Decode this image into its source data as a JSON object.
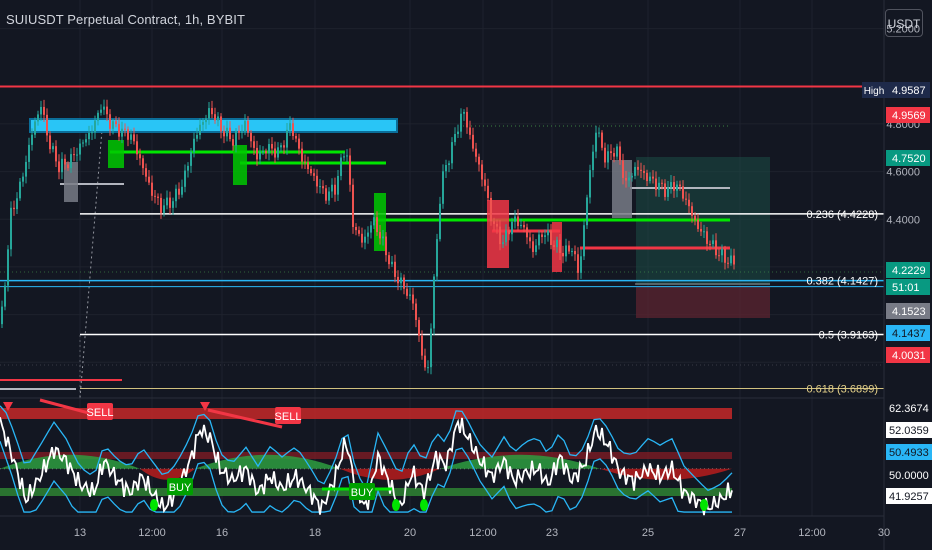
{
  "header": {
    "title": "SUIUSDT Perpetual Contract, 1h, BYBIT",
    "currency_label": "USDT"
  },
  "colors": {
    "bg": "#131722",
    "up": "#26a69a",
    "down": "#ef5350",
    "axis_text": "#b2b5be",
    "green": "#00e600",
    "red": "#f23645",
    "cyan": "#29b6f6"
  },
  "chart_data": [
    {
      "type": "line",
      "title": "SUIUSDT Perpetual Contract, 1h, BYBIT",
      "x_ticks": [
        "13",
        "12:00",
        "16",
        "18",
        "20",
        "12:00",
        "23",
        "25",
        "27",
        "12:00",
        "30"
      ],
      "y_ticks": [
        "5.2000",
        "4.8000",
        "4.6000",
        "4.4000"
      ],
      "ylim": [
        3.65,
        5.32
      ],
      "price_path": [
        [
          0,
          3.96
        ],
        [
          10,
          4.42
        ],
        [
          20,
          4.55
        ],
        [
          32,
          4.78
        ],
        [
          40,
          4.88
        ],
        [
          48,
          4.72
        ],
        [
          58,
          4.62
        ],
        [
          68,
          4.64
        ],
        [
          78,
          4.7
        ],
        [
          92,
          4.78
        ],
        [
          100,
          4.88
        ],
        [
          110,
          4.8
        ],
        [
          120,
          4.77
        ],
        [
          130,
          4.75
        ],
        [
          140,
          4.64
        ],
        [
          150,
          4.52
        ],
        [
          160,
          4.45
        ],
        [
          172,
          4.48
        ],
        [
          182,
          4.55
        ],
        [
          192,
          4.72
        ],
        [
          200,
          4.8
        ],
        [
          210,
          4.86
        ],
        [
          220,
          4.78
        ],
        [
          232,
          4.73
        ],
        [
          244,
          4.8
        ],
        [
          256,
          4.66
        ],
        [
          266,
          4.7
        ],
        [
          278,
          4.68
        ],
        [
          290,
          4.8
        ],
        [
          300,
          4.66
        ],
        [
          312,
          4.58
        ],
        [
          324,
          4.5
        ],
        [
          334,
          4.53
        ],
        [
          345,
          4.72
        ],
        [
          352,
          4.38
        ],
        [
          362,
          4.3
        ],
        [
          372,
          4.4
        ],
        [
          382,
          4.3
        ],
        [
          392,
          4.18
        ],
        [
          402,
          4.12
        ],
        [
          412,
          4.05
        ],
        [
          420,
          3.86
        ],
        [
          426,
          3.72
        ],
        [
          432,
          4.08
        ],
        [
          440,
          4.55
        ],
        [
          452,
          4.72
        ],
        [
          462,
          4.86
        ],
        [
          472,
          4.7
        ],
        [
          482,
          4.57
        ],
        [
          492,
          4.38
        ],
        [
          502,
          4.3
        ],
        [
          512,
          4.4
        ],
        [
          522,
          4.37
        ],
        [
          532,
          4.27
        ],
        [
          542,
          4.35
        ],
        [
          552,
          4.3
        ],
        [
          562,
          4.26
        ],
        [
          572,
          4.28
        ],
        [
          578,
          4.16
        ],
        [
          586,
          4.5
        ],
        [
          595,
          4.78
        ],
        [
          605,
          4.65
        ],
        [
          615,
          4.7
        ],
        [
          625,
          4.55
        ],
        [
          635,
          4.62
        ],
        [
          645,
          4.58
        ],
        [
          655,
          4.55
        ],
        [
          665,
          4.52
        ],
        [
          675,
          4.55
        ],
        [
          685,
          4.48
        ],
        [
          695,
          4.38
        ],
        [
          705,
          4.32
        ],
        [
          715,
          4.27
        ],
        [
          725,
          4.23
        ],
        [
          733,
          4.22
        ]
      ],
      "price_labels": [
        {
          "text": "4.9587",
          "value": 4.9587,
          "bg": "#1e2a4a",
          "fg": "#ffffff"
        },
        {
          "text": "4.9569",
          "value": 4.9569,
          "bg": "#f23645",
          "fg": "#ffffff"
        },
        {
          "text": "4.7520",
          "value": 4.752,
          "bg": "#089981",
          "fg": "#ffffff"
        },
        {
          "text": "4.2229",
          "value": 4.2229,
          "bg": "#089981",
          "fg": "#ffffff"
        },
        {
          "text": "51:01",
          "value": 4.18,
          "bg": "#089981",
          "fg": "#ffffff"
        },
        {
          "text": "4.1523",
          "value": 4.1523,
          "bg": "#787b86",
          "fg": "#ffffff"
        },
        {
          "text": "4.1437",
          "value": 4.1437,
          "bg": "#29b6f6",
          "fg": "#131722"
        },
        {
          "text": "4.0031",
          "value": 4.0031,
          "bg": "#f23645",
          "fg": "#ffffff"
        }
      ],
      "high_tag": "High",
      "fib_labels": [
        {
          "text": "0.236 (4.4228)",
          "value": 4.4228,
          "color": "#ffffff"
        },
        {
          "text": "0.382 (4.1427)",
          "value": 4.1427,
          "color": "#ffffff"
        },
        {
          "text": "0.5 (3.9163)",
          "value": 3.9163,
          "color": "#ffffff"
        },
        {
          "text": "0.618 (3.6899)",
          "value": 3.6899,
          "color": "#e6d28a"
        }
      ]
    },
    {
      "type": "line",
      "ylim": [
        38,
        68
      ],
      "oscillator_path": [
        [
          0,
          62
        ],
        [
          14,
          52
        ],
        [
          26,
          42
        ],
        [
          40,
          48
        ],
        [
          54,
          55
        ],
        [
          66,
          52
        ],
        [
          80,
          46
        ],
        [
          94,
          44
        ],
        [
          104,
          52
        ],
        [
          118,
          47
        ],
        [
          130,
          44
        ],
        [
          142,
          48
        ],
        [
          152,
          44
        ],
        [
          164,
          40
        ],
        [
          176,
          44
        ],
        [
          190,
          52
        ],
        [
          200,
          60
        ],
        [
          210,
          58
        ],
        [
          220,
          50
        ],
        [
          232,
          47
        ],
        [
          246,
          50
        ],
        [
          258,
          44
        ],
        [
          270,
          48
        ],
        [
          282,
          45
        ],
        [
          296,
          48
        ],
        [
          310,
          44
        ],
        [
          322,
          40
        ],
        [
          334,
          47
        ],
        [
          346,
          57
        ],
        [
          356,
          45
        ],
        [
          366,
          40
        ],
        [
          378,
          53
        ],
        [
          390,
          46
        ],
        [
          400,
          40
        ],
        [
          412,
          49
        ],
        [
          424,
          44
        ],
        [
          436,
          53
        ],
        [
          446,
          51
        ],
        [
          458,
          62
        ],
        [
          468,
          58
        ],
        [
          480,
          52
        ],
        [
          492,
          48
        ],
        [
          504,
          52
        ],
        [
          514,
          47
        ],
        [
          526,
          49
        ],
        [
          538,
          50
        ],
        [
          548,
          46
        ],
        [
          560,
          53
        ],
        [
          572,
          47
        ],
        [
          584,
          51
        ],
        [
          596,
          60
        ],
        [
          608,
          56
        ],
        [
          620,
          49
        ],
        [
          634,
          47
        ],
        [
          648,
          50
        ],
        [
          660,
          48
        ],
        [
          672,
          50
        ],
        [
          684,
          44
        ],
        [
          696,
          42
        ],
        [
          708,
          40
        ],
        [
          720,
          42
        ],
        [
          733,
          45
        ]
      ],
      "value_labels": [
        {
          "text": "62.3674",
          "value": 62.3674,
          "bg": "#131722",
          "fg": "#ffffff"
        },
        {
          "text": "52.0359",
          "value": 52.0359,
          "bg": "#ffffff",
          "fg": "#131722"
        },
        {
          "text": "50.4933",
          "value": 50.4933,
          "bg": "#29b6f6",
          "fg": "#131722"
        },
        {
          "text": "50.0000",
          "value": 50.0,
          "bg": "#131722",
          "fg": "#ffffff"
        },
        {
          "text": "41.9257",
          "value": 41.9257,
          "bg": "#ffffff",
          "fg": "#131722"
        }
      ],
      "signals": [
        {
          "text": "SELL",
          "type": "sell"
        },
        {
          "text": "SELL",
          "type": "sell"
        },
        {
          "text": "BUY",
          "type": "buy"
        },
        {
          "text": "BUY",
          "type": "buy"
        }
      ]
    }
  ]
}
